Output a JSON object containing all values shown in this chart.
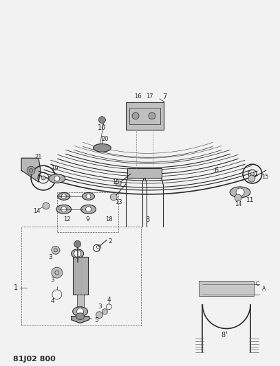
{
  "title": "81J02 800",
  "bg_color": "#f0f0f0",
  "line_color": "#2a2a2a",
  "gray_fill": "#c0c0c0",
  "dark_gray": "#888888",
  "light_gray": "#d8d8d8",
  "fig_w": 4.07,
  "fig_h": 5.33,
  "dpi": 100
}
